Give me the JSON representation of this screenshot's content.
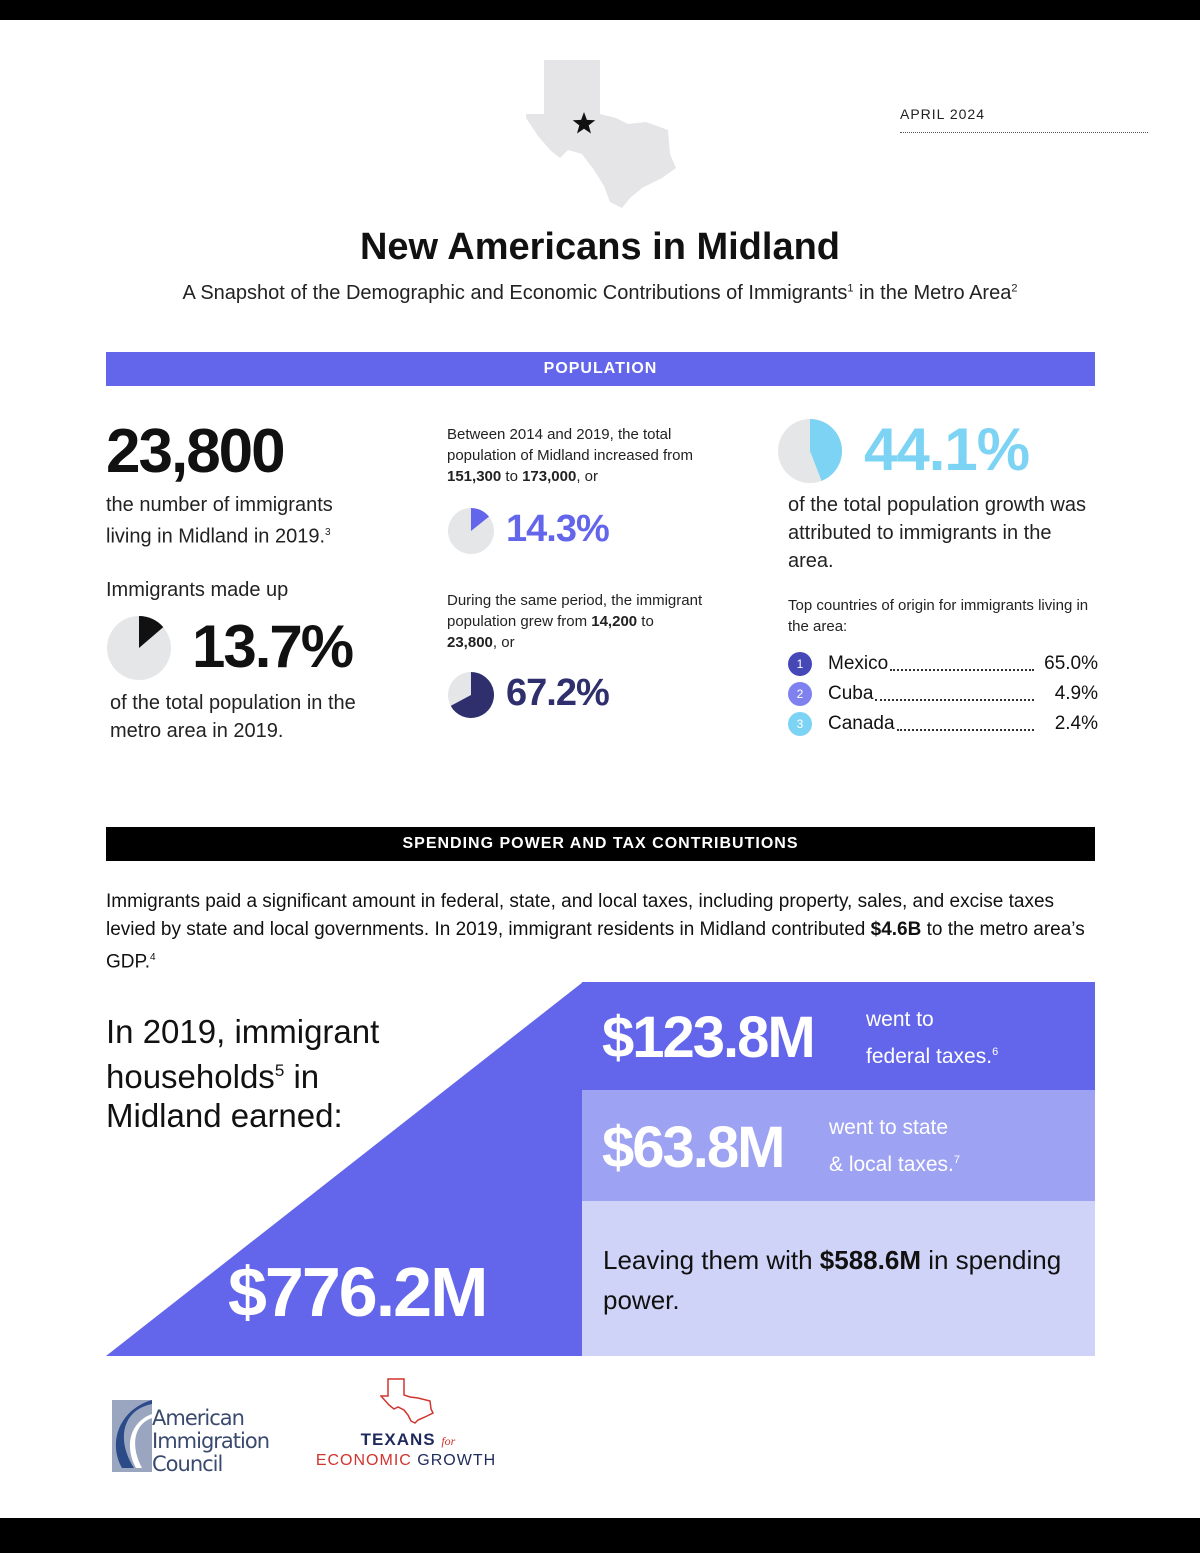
{
  "header": {
    "date": "APRIL 2024",
    "title": "New Americans in Midland",
    "subtitle_part1": "A Snapshot of the Demographic and Economic Contributions of Immigrants",
    "subtitle_sup1": "1",
    "subtitle_part2": " in the Metro Area",
    "subtitle_sup2": "2"
  },
  "population": {
    "section_label": "POPULATION",
    "immigrant_count": "23,800",
    "immigrant_count_desc": "the number of immigrants living in Midland in 2019.",
    "immigrant_count_sup": "3",
    "made_up_label": "Immigrants made up",
    "share_pct": "13.7%",
    "share_pct_value": 13.7,
    "share_desc": "of the total population in the metro area in 2019.",
    "growth_intro_1": "Between 2014 and 2019, the total population of Midland increased from ",
    "growth_from": "151,300",
    "growth_to_word": " to ",
    "growth_to": "173,000",
    "growth_or": ", or",
    "growth_pct": "14.3%",
    "growth_pct_value": 14.3,
    "imm_intro": "During the same period, the immigrant population grew from ",
    "imm_from": "14,200",
    "imm_to_word": " to ",
    "imm_to": "23,800",
    "imm_or": ", or",
    "imm_pct": "67.2%",
    "imm_pct_value": 67.2,
    "attrib_pct": "44.1%",
    "attrib_pct_value": 44.1,
    "attrib_desc": "of the total population growth was attributed to immigrants in the area.",
    "countries_label": "Top countries of origin for immigrants living in the area:",
    "countries": [
      {
        "rank": "1",
        "name": "Mexico",
        "value": "65.0%",
        "color": "#4648b8"
      },
      {
        "rank": "2",
        "name": "Cuba",
        "value": "4.9%",
        "color": "#7f82ee"
      },
      {
        "rank": "3",
        "name": "Canada",
        "value": "2.4%",
        "color": "#7dd3f4"
      }
    ]
  },
  "spending": {
    "section_label": "SPENDING POWER AND TAX CONTRIBUTIONS",
    "para_1": "Immigrants paid a significant amount in federal, state, and local taxes, including property, sales, and excise taxes levied by state and local governments. In 2019, immigrant residents in Midland contributed ",
    "para_gdp": "$4.6B",
    "para_2": " to the metro area’s GDP.",
    "para_sup": "4",
    "earned_1": "In 2019, immigrant households",
    "earned_sup": "5",
    "earned_2": " in Midland earned:",
    "total_earned": "$776.2M",
    "federal_value": "$123.8M",
    "federal_label_1": "went to",
    "federal_label_2": "federal taxes.",
    "federal_sup": "6",
    "state_value": "$63.8M",
    "state_label_1": "went to state",
    "state_label_2": "& local taxes.",
    "state_sup": "7",
    "leaving_1": "Leaving them with ",
    "leaving_value": "$588.6M",
    "leaving_2": " in spending power."
  },
  "logos": {
    "aic_line1": "American",
    "aic_line2": "Immigration",
    "aic_line3": "Council",
    "teg_texans": "TEXANS",
    "teg_for": "for",
    "teg_econ_red": "ECONOMIC",
    "teg_growth": " GROWTH"
  },
  "colors": {
    "accent": "#6366ea",
    "navy": "#2f2f6e",
    "light_blue": "#7dd3f4",
    "mid_purple": "#9ea2f2",
    "pale_purple": "#d0d3f8",
    "red": "#d0352e"
  }
}
